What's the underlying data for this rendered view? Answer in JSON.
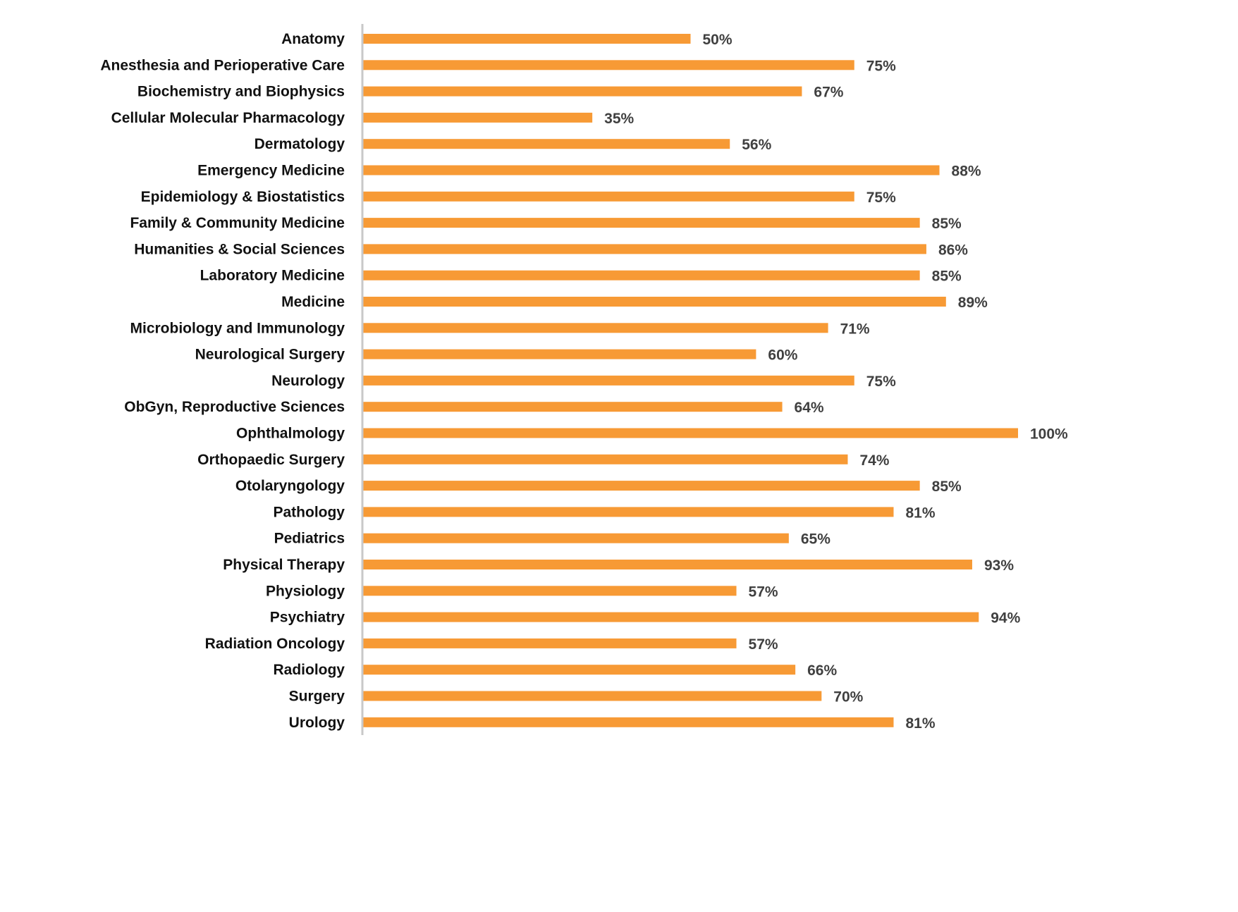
{
  "chart_data": {
    "type": "bar",
    "orientation": "horizontal",
    "title": "",
    "xlabel": "",
    "ylabel": "",
    "xlim": [
      0,
      100
    ],
    "grid": false,
    "legend": "none",
    "bar_color": "#F79A35",
    "value_label_color": "#404040",
    "axis_color": "#C8C8C8",
    "categories": [
      "Anatomy",
      "Anesthesia and Perioperative Care",
      "Biochemistry and Biophysics",
      "Cellular Molecular Pharmacology",
      "Dermatology",
      "Emergency Medicine",
      "Epidemiology & Biostatistics",
      "Family & Community Medicine",
      "Humanities & Social Sciences",
      "Laboratory Medicine",
      "Medicine",
      "Microbiology and Immunology",
      "Neurological Surgery",
      "Neurology",
      "ObGyn, Reproductive Sciences",
      "Ophthalmology",
      "Orthopaedic Surgery",
      "Otolaryngology",
      "Pathology",
      "Pediatrics",
      "Physical Therapy",
      "Physiology",
      "Psychiatry",
      "Radiation Oncology",
      "Radiology",
      "Surgery",
      "Urology"
    ],
    "values": [
      50,
      75,
      67,
      35,
      56,
      88,
      75,
      85,
      86,
      85,
      89,
      71,
      60,
      75,
      64,
      100,
      74,
      85,
      81,
      65,
      93,
      57,
      94,
      57,
      66,
      70,
      81
    ],
    "value_labels": [
      "50%",
      "75%",
      "67%",
      "35%",
      "56%",
      "88%",
      "75%",
      "85%",
      "86%",
      "85%",
      "89%",
      "71%",
      "60%",
      "75%",
      "64%",
      "100%",
      "74%",
      "85%",
      "81%",
      "65%",
      "93%",
      "57%",
      "94%",
      "57%",
      "66%",
      "70%",
      "81%"
    ]
  }
}
